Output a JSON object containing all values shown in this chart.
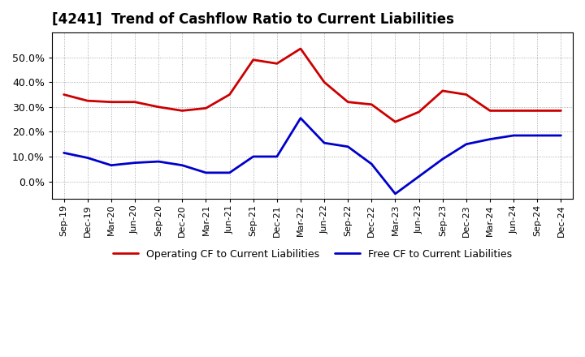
{
  "title": "[4241]  Trend of Cashflow Ratio to Current Liabilities",
  "x_labels": [
    "Sep-19",
    "Dec-19",
    "Mar-20",
    "Jun-20",
    "Sep-20",
    "Dec-20",
    "Mar-21",
    "Jun-21",
    "Sep-21",
    "Dec-21",
    "Mar-22",
    "Jun-22",
    "Sep-22",
    "Dec-22",
    "Mar-23",
    "Jun-23",
    "Sep-23",
    "Dec-23",
    "Mar-24",
    "Jun-24",
    "Sep-24",
    "Dec-24"
  ],
  "operating_cf": [
    0.35,
    0.325,
    0.32,
    0.32,
    0.3,
    0.285,
    0.295,
    0.35,
    0.49,
    0.475,
    0.535,
    0.4,
    0.32,
    0.31,
    0.24,
    0.28,
    0.365,
    0.35,
    0.285,
    0.285,
    0.285,
    0.285
  ],
  "free_cf": [
    0.115,
    0.095,
    0.065,
    0.075,
    0.08,
    0.065,
    0.035,
    0.035,
    0.1,
    0.1,
    0.255,
    0.155,
    0.14,
    0.07,
    -0.05,
    0.02,
    0.09,
    0.15,
    0.17,
    0.185,
    0.185,
    0.185
  ],
  "operating_color": "#cc0000",
  "free_color": "#0000cc",
  "ylim": [
    -0.07,
    0.6
  ],
  "yticks": [
    0.0,
    0.1,
    0.2,
    0.3,
    0.4,
    0.5
  ],
  "legend_op": "Operating CF to Current Liabilities",
  "legend_free": "Free CF to Current Liabilities",
  "background_color": "#ffffff",
  "grid_color": "#aaaaaa"
}
